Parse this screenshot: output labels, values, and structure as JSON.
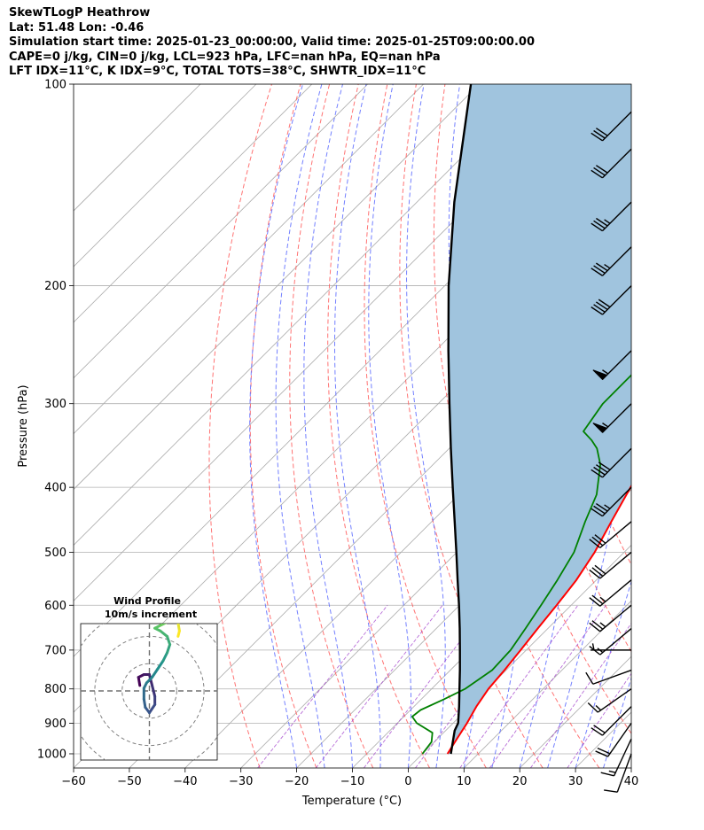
{
  "header": {
    "title": "SkewTLogP Heathrow",
    "location": "Lat: 51.48   Lon: -0.46",
    "times": "Simulation start time: 2025-01-23_00:00:00, Valid time: 2025-01-25T09:00:00.00",
    "indices1": "CAPE=0 j/kg, CIN=0 j/kg, LCL=923 hPa, LFC=nan hPa, EQ=nan hPa",
    "indices2": "LFT IDX=11°C, K IDX=9°C, TOTAL TOTS=38°C, SHWTR_IDX=11°C"
  },
  "chart_data": {
    "type": "line",
    "chart_kind": "skew-t log-p",
    "xlabel": "Temperature (°C)",
    "ylabel": "Pressure (hPa)",
    "xlim": [
      -60,
      40
    ],
    "ylim": [
      1050,
      100
    ],
    "y_scale": "log",
    "x_ticks": [
      -60,
      -50,
      -40,
      -30,
      -20,
      -10,
      0,
      10,
      20,
      30,
      40
    ],
    "x_tick_labels": [
      "−60",
      "−50",
      "−40",
      "−30",
      "−20",
      "−10",
      "0",
      "10",
      "20",
      "30",
      "40"
    ],
    "y_ticks": [
      1000,
      900,
      800,
      700,
      600,
      500,
      400,
      300,
      200,
      100
    ],
    "grid": true,
    "colors": {
      "temperature": "#ff0000",
      "dewpoint": "#008000",
      "parcel": "#000000",
      "shading": "#a0c4de",
      "dry_adiabats": "#ff5a5a",
      "moist_adiabats": "#5a6aff",
      "isotherms": "#aaaaaa",
      "mixing_ratio": "#9a30c8"
    },
    "series": [
      {
        "key": "temperature",
        "points": [
          [
            1000,
            4.5
          ],
          [
            950,
            3.5
          ],
          [
            900,
            2.5
          ],
          [
            850,
            1.2
          ],
          [
            800,
            0.2
          ],
          [
            750,
            -0.3
          ],
          [
            700,
            -1.0
          ],
          [
            650,
            -1.8
          ],
          [
            600,
            -2.6
          ],
          [
            550,
            -3.6
          ],
          [
            500,
            -5.3
          ],
          [
            450,
            -7.8
          ],
          [
            400,
            -10.5
          ],
          [
            370,
            -12.2
          ],
          [
            350,
            -12.6
          ],
          [
            320,
            -13.2
          ],
          [
            300,
            -13.8
          ],
          [
            270,
            -14.6
          ],
          [
            250,
            -15.5
          ],
          [
            235,
            -16.5
          ],
          [
            220,
            -17.5
          ],
          [
            210,
            -19.0
          ],
          [
            200,
            -20.2
          ],
          [
            185,
            -22.5
          ],
          [
            170,
            -24.0
          ],
          [
            160,
            -24.5
          ],
          [
            150,
            -25.3
          ],
          [
            145,
            -25.8
          ],
          [
            140,
            -26.5
          ],
          [
            130,
            -28.5
          ],
          [
            120,
            -30.0
          ],
          [
            110,
            -31.0
          ],
          [
            100,
            -32.5
          ]
        ]
      },
      {
        "key": "dewpoint",
        "points": [
          [
            1000,
            0.0
          ],
          [
            960,
            -0.5
          ],
          [
            930,
            -2.0
          ],
          [
            900,
            -6.5
          ],
          [
            880,
            -8.5
          ],
          [
            860,
            -8.2
          ],
          [
            830,
            -6.0
          ],
          [
            800,
            -4.0
          ],
          [
            750,
            -2.5
          ],
          [
            700,
            -2.8
          ],
          [
            650,
            -4.0
          ],
          [
            600,
            -5.4
          ],
          [
            550,
            -7.0
          ],
          [
            500,
            -9.0
          ],
          [
            450,
            -12.5
          ],
          [
            410,
            -15.3
          ],
          [
            370,
            -20.0
          ],
          [
            350,
            -23.5
          ],
          [
            340,
            -26.0
          ],
          [
            330,
            -29.0
          ],
          [
            300,
            -30.5
          ],
          [
            280,
            -30.5
          ],
          [
            250,
            -30.5
          ],
          [
            230,
            -31.5
          ],
          [
            210,
            -34.5
          ],
          [
            200,
            -37.5
          ],
          [
            185,
            -40.5
          ],
          [
            170,
            -42.5
          ],
          [
            150,
            -45.0
          ],
          [
            130,
            -46.5
          ],
          [
            120,
            -47.5
          ],
          [
            110,
            -48.8
          ],
          [
            100,
            -50.5
          ]
        ]
      },
      {
        "key": "parcel",
        "points": [
          [
            1000,
            5.1
          ],
          [
            923,
            1.6
          ],
          [
            900,
            0.9
          ],
          [
            850,
            -1.9
          ],
          [
            800,
            -5.0
          ],
          [
            750,
            -8.3
          ],
          [
            700,
            -11.9
          ],
          [
            650,
            -15.8
          ],
          [
            600,
            -20.1
          ],
          [
            550,
            -24.9
          ],
          [
            500,
            -30.1
          ],
          [
            450,
            -35.9
          ],
          [
            400,
            -42.4
          ],
          [
            350,
            -49.7
          ],
          [
            300,
            -58.0
          ],
          [
            250,
            -67.7
          ],
          [
            200,
            -79.3
          ],
          [
            150,
            -93.3
          ],
          [
            100,
            -111.5
          ]
        ]
      }
    ],
    "wind_barbs": [
      {
        "p": 1000,
        "speed_kt": 10,
        "dir_deg": 200
      },
      {
        "p": 950,
        "speed_kt": 15,
        "dir_deg": 205
      },
      {
        "p": 900,
        "speed_kt": 20,
        "dir_deg": 215
      },
      {
        "p": 850,
        "speed_kt": 20,
        "dir_deg": 225
      },
      {
        "p": 800,
        "speed_kt": 15,
        "dir_deg": 235
      },
      {
        "p": 750,
        "speed_kt": 10,
        "dir_deg": 250
      },
      {
        "p": 700,
        "speed_kt": 5,
        "dir_deg": 270
      },
      {
        "p": 650,
        "speed_kt": 15,
        "dir_deg": 230
      },
      {
        "p": 600,
        "speed_kt": 25,
        "dir_deg": 230
      },
      {
        "p": 550,
        "speed_kt": 25,
        "dir_deg": 230
      },
      {
        "p": 500,
        "speed_kt": 30,
        "dir_deg": 230
      },
      {
        "p": 450,
        "speed_kt": 30,
        "dir_deg": 230
      },
      {
        "p": 400,
        "speed_kt": 35,
        "dir_deg": 225
      },
      {
        "p": 350,
        "speed_kt": 40,
        "dir_deg": 225
      },
      {
        "p": 300,
        "speed_kt": 55,
        "dir_deg": 225
      },
      {
        "p": 250,
        "speed_kt": 55,
        "dir_deg": 225
      },
      {
        "p": 200,
        "speed_kt": 40,
        "dir_deg": 225
      },
      {
        "p": 175,
        "speed_kt": 35,
        "dir_deg": 225
      },
      {
        "p": 150,
        "speed_kt": 35,
        "dir_deg": 225
      },
      {
        "p": 125,
        "speed_kt": 30,
        "dir_deg": 225
      },
      {
        "p": 110,
        "speed_kt": 30,
        "dir_deg": 225
      }
    ],
    "hodograph": {
      "title": "Wind Profile",
      "subtitle": "10m/s increment",
      "rings_ms": [
        10,
        20,
        30
      ],
      "range_ms": 25,
      "points": [
        [
          -3.5,
          2
        ],
        [
          -4,
          5
        ],
        [
          -2,
          6
        ],
        [
          0,
          6
        ],
        [
          1,
          2
        ],
        [
          2,
          -2
        ],
        [
          2,
          -5
        ],
        [
          0,
          -8
        ],
        [
          -1.5,
          -6
        ],
        [
          -2,
          -3
        ],
        [
          -2,
          1
        ],
        [
          -1,
          3
        ],
        [
          1,
          5
        ],
        [
          3,
          8
        ],
        [
          5,
          11
        ],
        [
          6.5,
          14
        ],
        [
          7.5,
          17
        ],
        [
          6.5,
          20
        ],
        [
          4,
          22
        ],
        [
          2,
          23
        ],
        [
          4,
          24
        ],
        [
          6,
          25
        ],
        [
          8,
          26
        ],
        [
          9,
          27
        ],
        [
          10,
          26
        ],
        [
          10.5,
          25
        ],
        [
          11,
          22
        ],
        [
          10.5,
          20
        ]
      ],
      "colormap": [
        "#440154",
        "#3b528b",
        "#21918c",
        "#5ec962",
        "#fde725"
      ]
    }
  }
}
